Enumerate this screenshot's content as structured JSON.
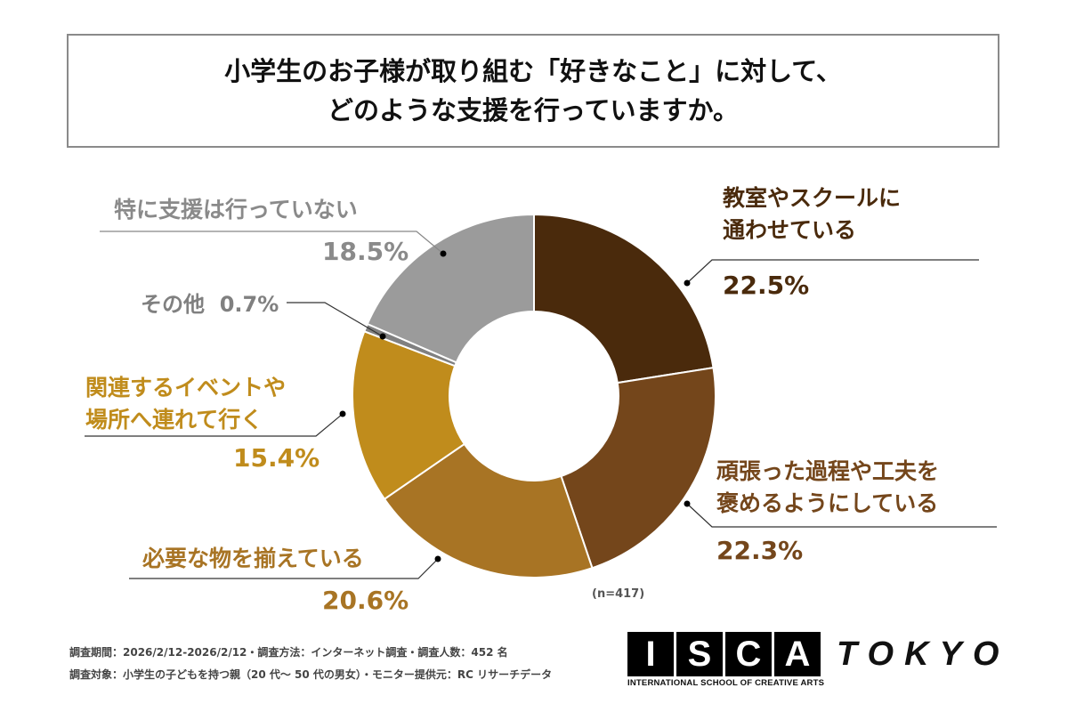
{
  "title": [
    "小学生のお子様が取り組む「好きなこと」に対して、",
    "どのような支援を行っていますか。"
  ],
  "chart_data": {
    "type": "donut",
    "start": "top",
    "direction": "clockwise",
    "slices": [
      {
        "label": "教室やスクールに\n通わせている",
        "value": 22.5,
        "display": "22.5%",
        "color": "#4a2a0c"
      },
      {
        "label": "頑張った過程や工夫を\n褒めるようにしている",
        "value": 22.3,
        "display": "22.3%",
        "color": "#74461b"
      },
      {
        "label": "必要な物を揃えている",
        "value": 20.6,
        "display": "20.6%",
        "color": "#a87424"
      },
      {
        "label": "関連するイベントや\n場所へ連れて行く",
        "value": 15.4,
        "display": "15.4%",
        "color": "#c08c1c"
      },
      {
        "label": "その他",
        "value": 0.7,
        "display": "0.7%",
        "color": "#808080"
      },
      {
        "label": "特に支援は行っていない",
        "value": 18.5,
        "display": "18.5%",
        "color": "#9b9b9b"
      }
    ],
    "label_colors": [
      "#4a2a0c",
      "#74461b",
      "#a87424",
      "#c08c1c",
      "#808080",
      "#8a8a8a"
    ],
    "n_note": "(n=417)"
  },
  "footer": [
    "調査期間：2026/2/12-2026/2/12・調査方法：インターネット調査・調査人数：452 名",
    "調査対象：小学生の子どもを持つ親（20 代～ 50 代の男女）・モニター提供元：RC リサーチデータ"
  ],
  "logo": {
    "letters": [
      "I",
      "S",
      "C",
      "A"
    ],
    "tokyo": "TOKYO",
    "subtitle": "INTERNATIONAL SCHOOL OF CREATIVE ARTS"
  }
}
